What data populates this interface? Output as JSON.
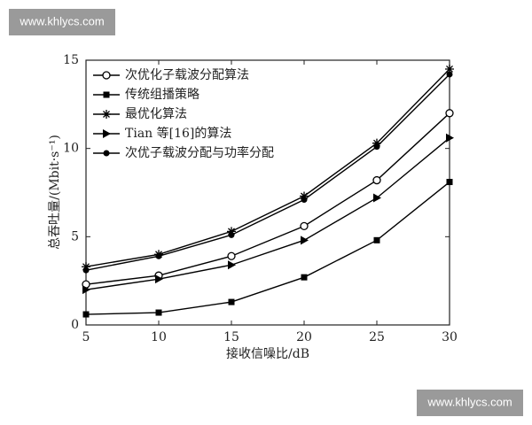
{
  "watermarks": [
    "www.khlycs.com",
    "www.khlycs.com"
  ],
  "chart_data": {
    "type": "line",
    "x_label": "接收信噪比/dB",
    "y_label": "总吞吐量/(Mbit·s⁻¹)",
    "x": [
      5,
      10,
      15,
      20,
      25,
      30
    ],
    "xlim": [
      5,
      30
    ],
    "xticks": [
      5,
      10,
      15,
      20,
      25,
      30
    ],
    "ylim": [
      0,
      15
    ],
    "yticks": [
      0,
      5,
      10,
      15
    ],
    "legend": "upper left",
    "series": [
      {
        "name": "次优化子载波分配算法",
        "color": "#000000",
        "marker": "circle-open",
        "values": [
          2.3,
          2.8,
          3.9,
          5.6,
          8.2,
          12.0
        ]
      },
      {
        "name": "传统组播策略",
        "color": "#000000",
        "marker": "square",
        "values": [
          0.6,
          0.7,
          1.3,
          2.7,
          4.8,
          8.1
        ]
      },
      {
        "name": "最优化算法",
        "color": "#000000",
        "marker": "star",
        "values": [
          3.3,
          4.0,
          5.3,
          7.3,
          10.3,
          14.5
        ]
      },
      {
        "name": "Tian 等[16]的算法",
        "color": "#000000",
        "marker": "triangle-right",
        "values": [
          2.0,
          2.6,
          3.4,
          4.8,
          7.2,
          10.6
        ]
      },
      {
        "name": "次优子载波分配与功率分配",
        "color": "#000000",
        "marker": "circle",
        "values": [
          3.1,
          3.9,
          5.1,
          7.1,
          10.1,
          14.2
        ]
      }
    ]
  }
}
